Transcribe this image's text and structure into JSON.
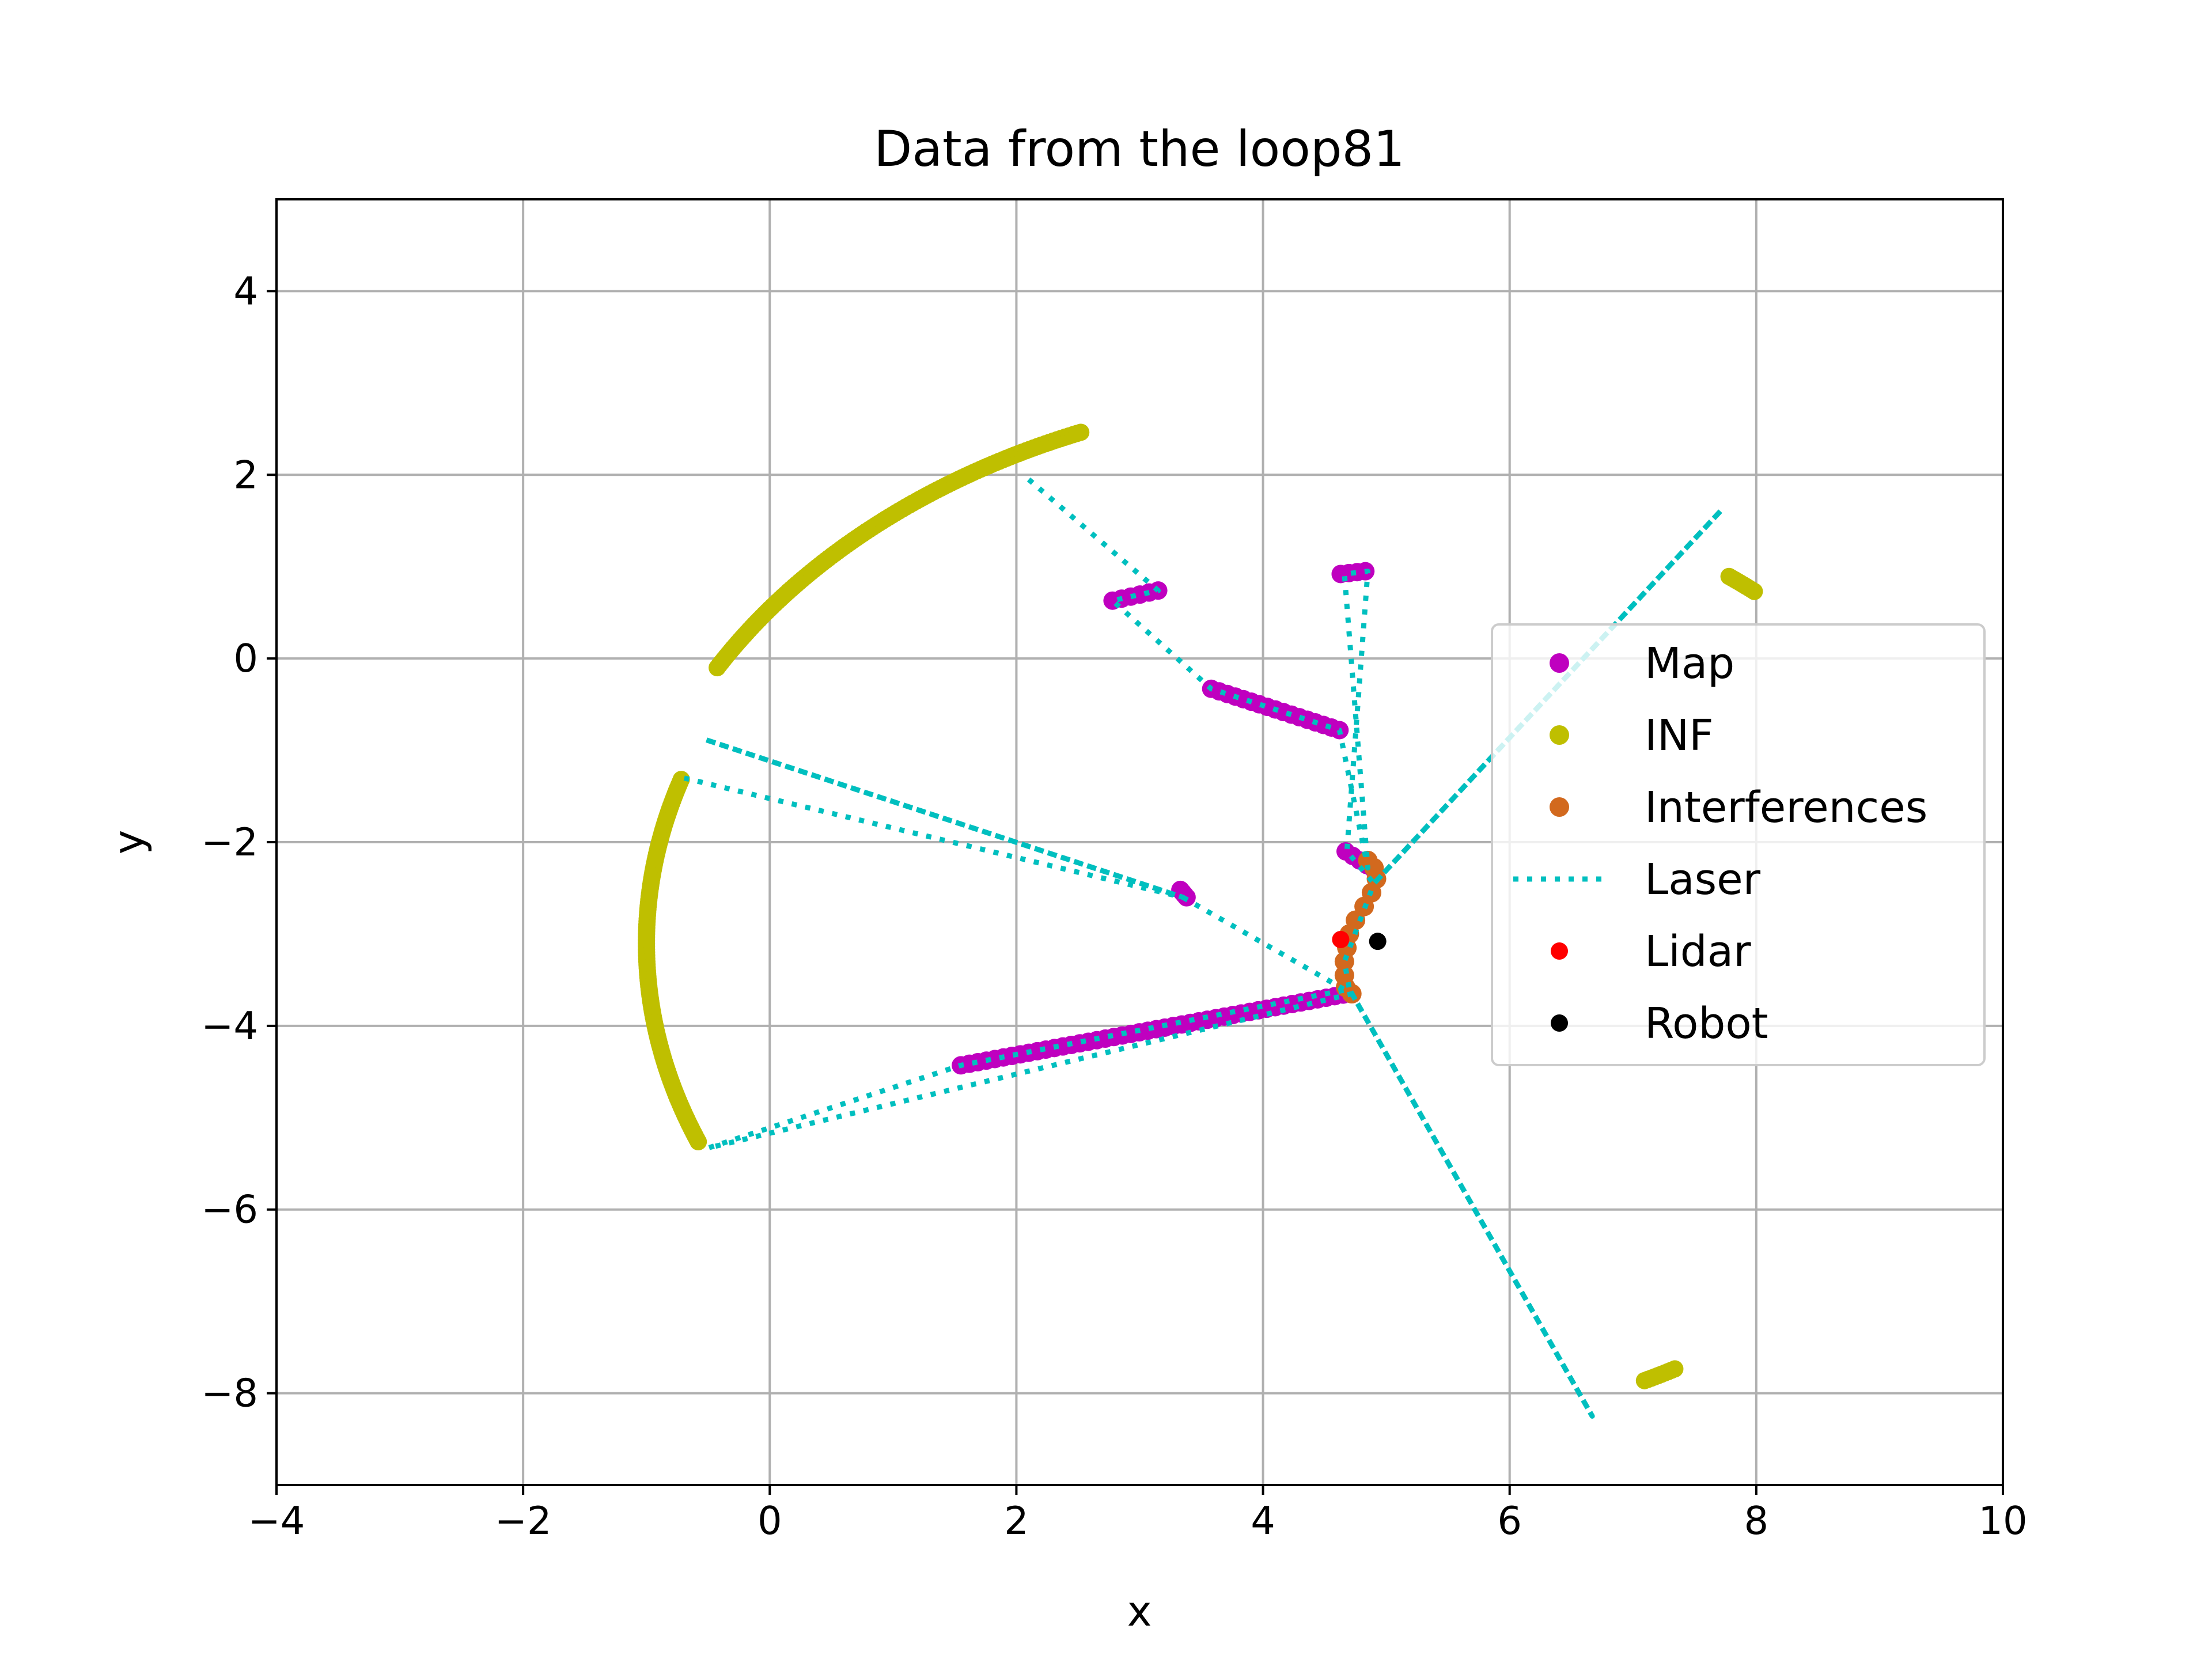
{
  "chart_data": {
    "type": "scatter",
    "title": "Data from the loop81",
    "xlabel": "x",
    "ylabel": "y",
    "xlim": [
      -4,
      10
    ],
    "ylim": [
      -9,
      5
    ],
    "xticks": [
      -4,
      -2,
      0,
      2,
      4,
      6,
      8,
      10
    ],
    "yticks": [
      -8,
      -6,
      -4,
      -2,
      0,
      2,
      4
    ],
    "xtick_labels": [
      "−4",
      "−2",
      "0",
      "2",
      "4",
      "6",
      "8",
      "10"
    ],
    "ytick_labels": [
      "−8",
      "−6",
      "−4",
      "−2",
      "0",
      "2",
      "4"
    ],
    "grid": true,
    "legend_position": "center-right",
    "colors": {
      "map": "#bf00bf",
      "inf": "#bfbf00",
      "interferences": "#d2691e",
      "laser": "#00bfbf",
      "lidar": "#ff0000",
      "robot": "#000000"
    },
    "series": [
      {
        "name": "Map",
        "kind": "points",
        "color": "#bf00bf",
        "segments": [
          [
            [
              2.78,
              0.63
            ],
            [
              3.15,
              0.74
            ]
          ],
          [
            [
              3.58,
              -0.33
            ],
            [
              4.62,
              -0.78
            ]
          ],
          [
            [
              4.63,
              0.92
            ],
            [
              4.83,
              0.95
            ]
          ],
          [
            [
              4.67,
              -2.1
            ],
            [
              4.9,
              -2.3
            ]
          ],
          [
            [
              3.33,
              -2.52
            ],
            [
              3.38,
              -2.6
            ]
          ],
          [
            [
              1.55,
              -4.43
            ],
            [
              4.65,
              -3.66
            ]
          ]
        ]
      },
      {
        "name": "INF",
        "kind": "points",
        "color": "#bfbf00",
        "arcs": [
          {
            "center": [
              4.77,
              -3.1
            ],
            "radius": 6.0,
            "from_deg": 150,
            "to_deg": 112
          },
          {
            "center": [
              4.77,
              -3.1
            ],
            "radius": 5.77,
            "from_deg": 162,
            "to_deg": 202
          },
          {
            "center": [
              4.77,
              -3.1
            ],
            "radius": 5.0,
            "from_deg": 53,
            "to_deg": 50
          },
          {
            "center": [
              4.77,
              -3.1
            ],
            "radius": 5.3,
            "from_deg": -64,
            "to_deg": -61
          }
        ]
      },
      {
        "name": "Interferences",
        "kind": "points",
        "color": "#d2691e",
        "points": [
          [
            4.85,
            -2.2
          ],
          [
            4.9,
            -2.28
          ],
          [
            4.92,
            -2.4
          ],
          [
            4.88,
            -2.55
          ],
          [
            4.82,
            -2.7
          ],
          [
            4.75,
            -2.85
          ],
          [
            4.7,
            -3.0
          ],
          [
            4.68,
            -3.15
          ],
          [
            4.66,
            -3.3
          ],
          [
            4.66,
            -3.45
          ],
          [
            4.67,
            -3.58
          ],
          [
            4.72,
            -3.65
          ]
        ]
      },
      {
        "name": "Laser",
        "kind": "dotted-line",
        "color": "#00bfbf",
        "path": [
          [
            2.1,
            1.95
          ],
          [
            3.15,
            0.74
          ],
          [
            2.78,
            0.63
          ],
          [
            3.58,
            -0.33
          ],
          [
            4.62,
            -0.78
          ],
          [
            4.85,
            -2.28
          ],
          [
            4.66,
            0.92
          ],
          [
            4.85,
            0.95
          ],
          [
            4.68,
            -2.1
          ],
          [
            4.9,
            -2.45
          ],
          [
            7.72,
            1.62
          ],
          [
            4.9,
            -2.45
          ],
          [
            4.66,
            -3.3
          ],
          [
            4.7,
            -3.6
          ],
          [
            6.67,
            -8.25
          ],
          [
            4.7,
            -3.6
          ],
          [
            1.55,
            -4.43
          ],
          [
            -0.5,
            -5.33
          ],
          [
            4.72,
            -3.65
          ],
          [
            3.35,
            -2.6
          ],
          [
            -0.53,
            -0.88
          ],
          [
            3.35,
            -2.6
          ],
          [
            -0.7,
            -1.3
          ]
        ]
      },
      {
        "name": "Lidar",
        "kind": "point",
        "color": "#ff0000",
        "points": [
          [
            4.63,
            -3.06
          ]
        ]
      },
      {
        "name": "Robot",
        "kind": "point",
        "color": "#000000",
        "points": [
          [
            4.93,
            -3.08
          ]
        ]
      }
    ]
  }
}
